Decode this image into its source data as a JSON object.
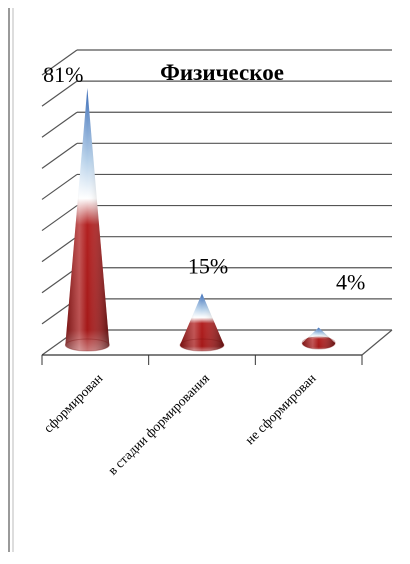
{
  "chart_data": {
    "type": "bar",
    "shape": "3d-cone",
    "title": "Физическое",
    "categories": [
      "сформирован",
      "в стадии формирования",
      "не сформирован"
    ],
    "series": [
      {
        "values": [
          81,
          15,
          4
        ]
      }
    ],
    "data_labels": [
      "81%",
      "15%",
      "4%"
    ],
    "ylim": [
      0,
      90
    ],
    "grid": true,
    "legend": "none",
    "colors": {
      "cone_top": "#5a86c8",
      "cone_middle": "#ffffff",
      "cone_bottom": "#b01a1a",
      "gridline": "#555555",
      "frame": "#aaaaaa"
    }
  }
}
